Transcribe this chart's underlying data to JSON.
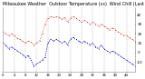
{
  "title": "Milwaukee Weather  Outdoor Temperature (vs)  Wind Chill (Last 24 Hours)",
  "title_fontsize": 3.5,
  "bg_color": "#ffffff",
  "plot_bg_color": "#ffffff",
  "grid_color": "#999999",
  "temp_color": "#cc0000",
  "chill_color": "#0000cc",
  "temp_x": [
    0,
    1,
    2,
    3,
    4,
    5,
    6,
    7,
    8,
    9,
    10,
    11,
    12,
    13,
    14,
    15,
    16,
    17,
    18,
    19,
    20,
    21,
    22,
    23,
    24,
    25,
    26,
    27,
    28,
    29,
    30,
    31,
    32,
    33,
    34,
    35,
    36,
    37,
    38,
    39,
    40,
    41,
    42,
    43,
    44,
    45,
    46,
    47
  ],
  "temp_y": [
    22,
    20,
    18,
    20,
    18,
    15,
    14,
    12,
    10,
    12,
    11,
    8,
    10,
    12,
    20,
    30,
    36,
    38,
    37,
    38,
    37,
    35,
    37,
    32,
    36,
    38,
    36,
    34,
    32,
    34,
    32,
    30,
    32,
    30,
    28,
    30,
    28,
    26,
    24,
    26,
    24,
    22,
    20,
    18,
    18,
    16,
    14,
    12
  ],
  "chill_x": [
    0,
    1,
    2,
    3,
    4,
    5,
    6,
    7,
    8,
    9,
    10,
    11,
    12,
    13,
    14,
    15,
    16,
    17,
    18,
    19,
    20,
    21,
    22,
    23,
    24,
    25,
    26,
    27,
    28,
    29,
    30,
    31,
    32,
    33,
    34,
    35,
    36,
    37,
    38,
    39,
    40,
    41,
    42,
    43,
    44,
    45,
    46,
    47
  ],
  "chill_y": [
    10,
    8,
    4,
    6,
    4,
    2,
    0,
    -2,
    -5,
    -3,
    -8,
    -14,
    -12,
    -10,
    -8,
    -5,
    10,
    14,
    12,
    14,
    12,
    10,
    12,
    8,
    14,
    16,
    14,
    12,
    10,
    12,
    10,
    8,
    10,
    6,
    4,
    8,
    4,
    2,
    0,
    2,
    0,
    -2,
    -4,
    -6,
    -8,
    -10,
    -12,
    -14
  ],
  "ylim": [
    -20,
    48
  ],
  "ytick_labels": [
    "40",
    "30",
    "20",
    "10",
    "0",
    "-10"
  ],
  "ytick_values": [
    40,
    30,
    20,
    10,
    0,
    -10
  ],
  "ylabel_fontsize": 3.0,
  "num_points": 48,
  "xlabel_fontsize": 2.8,
  "xtick_interval": 4,
  "vgrid_positions": [
    4,
    8,
    12,
    16,
    20,
    24,
    28,
    32,
    36,
    40,
    44
  ],
  "xlim": [
    0,
    47
  ]
}
